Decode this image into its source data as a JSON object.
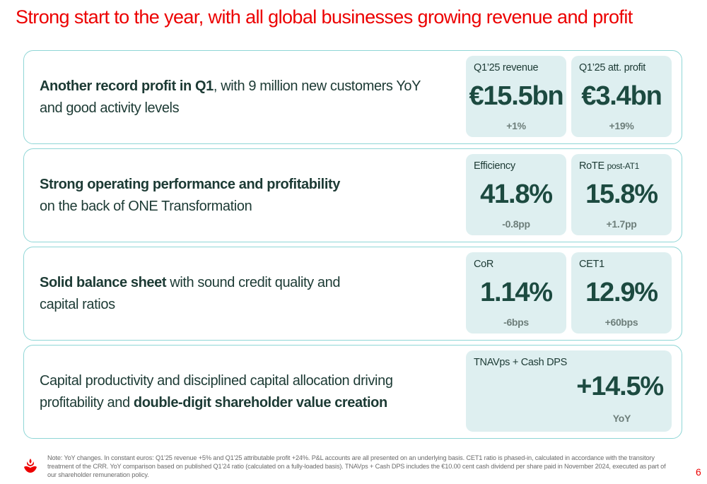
{
  "title": "Strong start to the year, with all global businesses growing revenue and profit",
  "rows": [
    {
      "text_bold": "Another record profit in Q1",
      "text_rest": ", with 9 million new customers YoY and good activity levels",
      "kpis": [
        {
          "label": "Q1’25 revenue",
          "value": "€15.5bn",
          "delta": "+1%"
        },
        {
          "label": "Q1’25 att. profit",
          "value": "€3.4bn",
          "delta": "+19%"
        }
      ]
    },
    {
      "text_bold": "Strong operating performance and profitability",
      "text_rest": "on the back of  ONE Transformation",
      "kpis": [
        {
          "label": "Efficiency",
          "value": "41.8%",
          "delta": "-0.8pp"
        },
        {
          "label": "RoTE",
          "label_suffix": "post-AT1",
          "value": "15.8%",
          "delta": "+1.7pp"
        }
      ]
    },
    {
      "text_bold": "Solid balance sheet",
      "text_rest": " with sound credit quality and capital ratios",
      "kpis": [
        {
          "label": "CoR",
          "value": "1.14%",
          "delta": "-6bps"
        },
        {
          "label": "CET1",
          "value": "12.9%",
          "delta": "+60bps"
        }
      ]
    },
    {
      "text_pre": "Capital productivity and disciplined capital allocation driving profitability and ",
      "text_bold": "double-digit shareholder value creation",
      "kpis": [
        {
          "label": "TNAVps + Cash DPS",
          "value": "+14.5%",
          "delta": "YoY"
        }
      ]
    }
  ],
  "footnote": "Note: YoY changes. In constant euros: Q1’25 revenue +5% and Q1’25 attributable profit +24%. P&L accounts are all presented on an underlying basis. CET1 ratio is phased-in, calculated in accordance with the transitory treatment of the CRR. YoY comparison based on published Q1’24 ratio (calculated on a fully-loaded basis). TNAVps + Cash DPS includes the €10.00 cent cash dividend per share paid in November 2024, executed as part of our shareholder remuneration policy.",
  "page_number": "6",
  "logo": {
    "icon": "flame-logo-icon",
    "color": "#ec0000"
  }
}
